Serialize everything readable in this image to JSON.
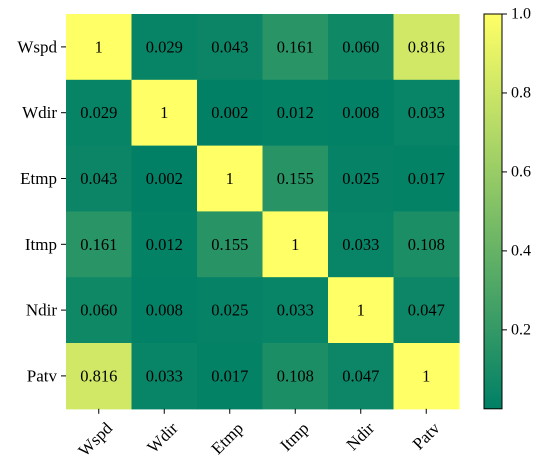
{
  "chart_data": {
    "type": "heatmap",
    "title": "",
    "xlabel": "",
    "ylabel": "",
    "x_categories": [
      "Wspd",
      "Wdir",
      "Etmp",
      "Itmp",
      "Ndir",
      "Patv"
    ],
    "y_categories": [
      "Wspd",
      "Wdir",
      "Etmp",
      "Itmp",
      "Ndir",
      "Patv"
    ],
    "values": [
      [
        1,
        0.029,
        0.043,
        0.161,
        0.06,
        0.816
      ],
      [
        0.029,
        1,
        0.002,
        0.012,
        0.008,
        0.033
      ],
      [
        0.043,
        0.002,
        1,
        0.155,
        0.025,
        0.017
      ],
      [
        0.161,
        0.012,
        0.155,
        1,
        0.033,
        0.108
      ],
      [
        0.06,
        0.008,
        0.025,
        0.033,
        1,
        0.047
      ],
      [
        0.816,
        0.033,
        0.017,
        0.108,
        0.047,
        1
      ]
    ],
    "cell_labels": [
      [
        "1",
        "0.029",
        "0.043",
        "0.161",
        "0.060",
        "0.816"
      ],
      [
        "0.029",
        "1",
        "0.002",
        "0.012",
        "0.008",
        "0.033"
      ],
      [
        "0.043",
        "0.002",
        "1",
        "0.155",
        "0.025",
        "0.017"
      ],
      [
        "0.161",
        "0.012",
        "0.155",
        "1",
        "0.033",
        "0.108"
      ],
      [
        "0.060",
        "0.008",
        "0.025",
        "0.033",
        "1",
        "0.047"
      ],
      [
        "0.816",
        "0.033",
        "0.017",
        "0.108",
        "0.047",
        "1"
      ]
    ],
    "colorbar": {
      "range": [
        0,
        1.0
      ],
      "ticks": [
        0.2,
        0.4,
        0.6,
        0.8,
        1.0
      ],
      "tick_labels": [
        "0.2",
        "0.4",
        "0.6",
        "0.8",
        "1.0"
      ],
      "colormap": "summer",
      "color_low": "#008066",
      "color_high": "#ffff66"
    },
    "x_tick_rotation": 45
  }
}
